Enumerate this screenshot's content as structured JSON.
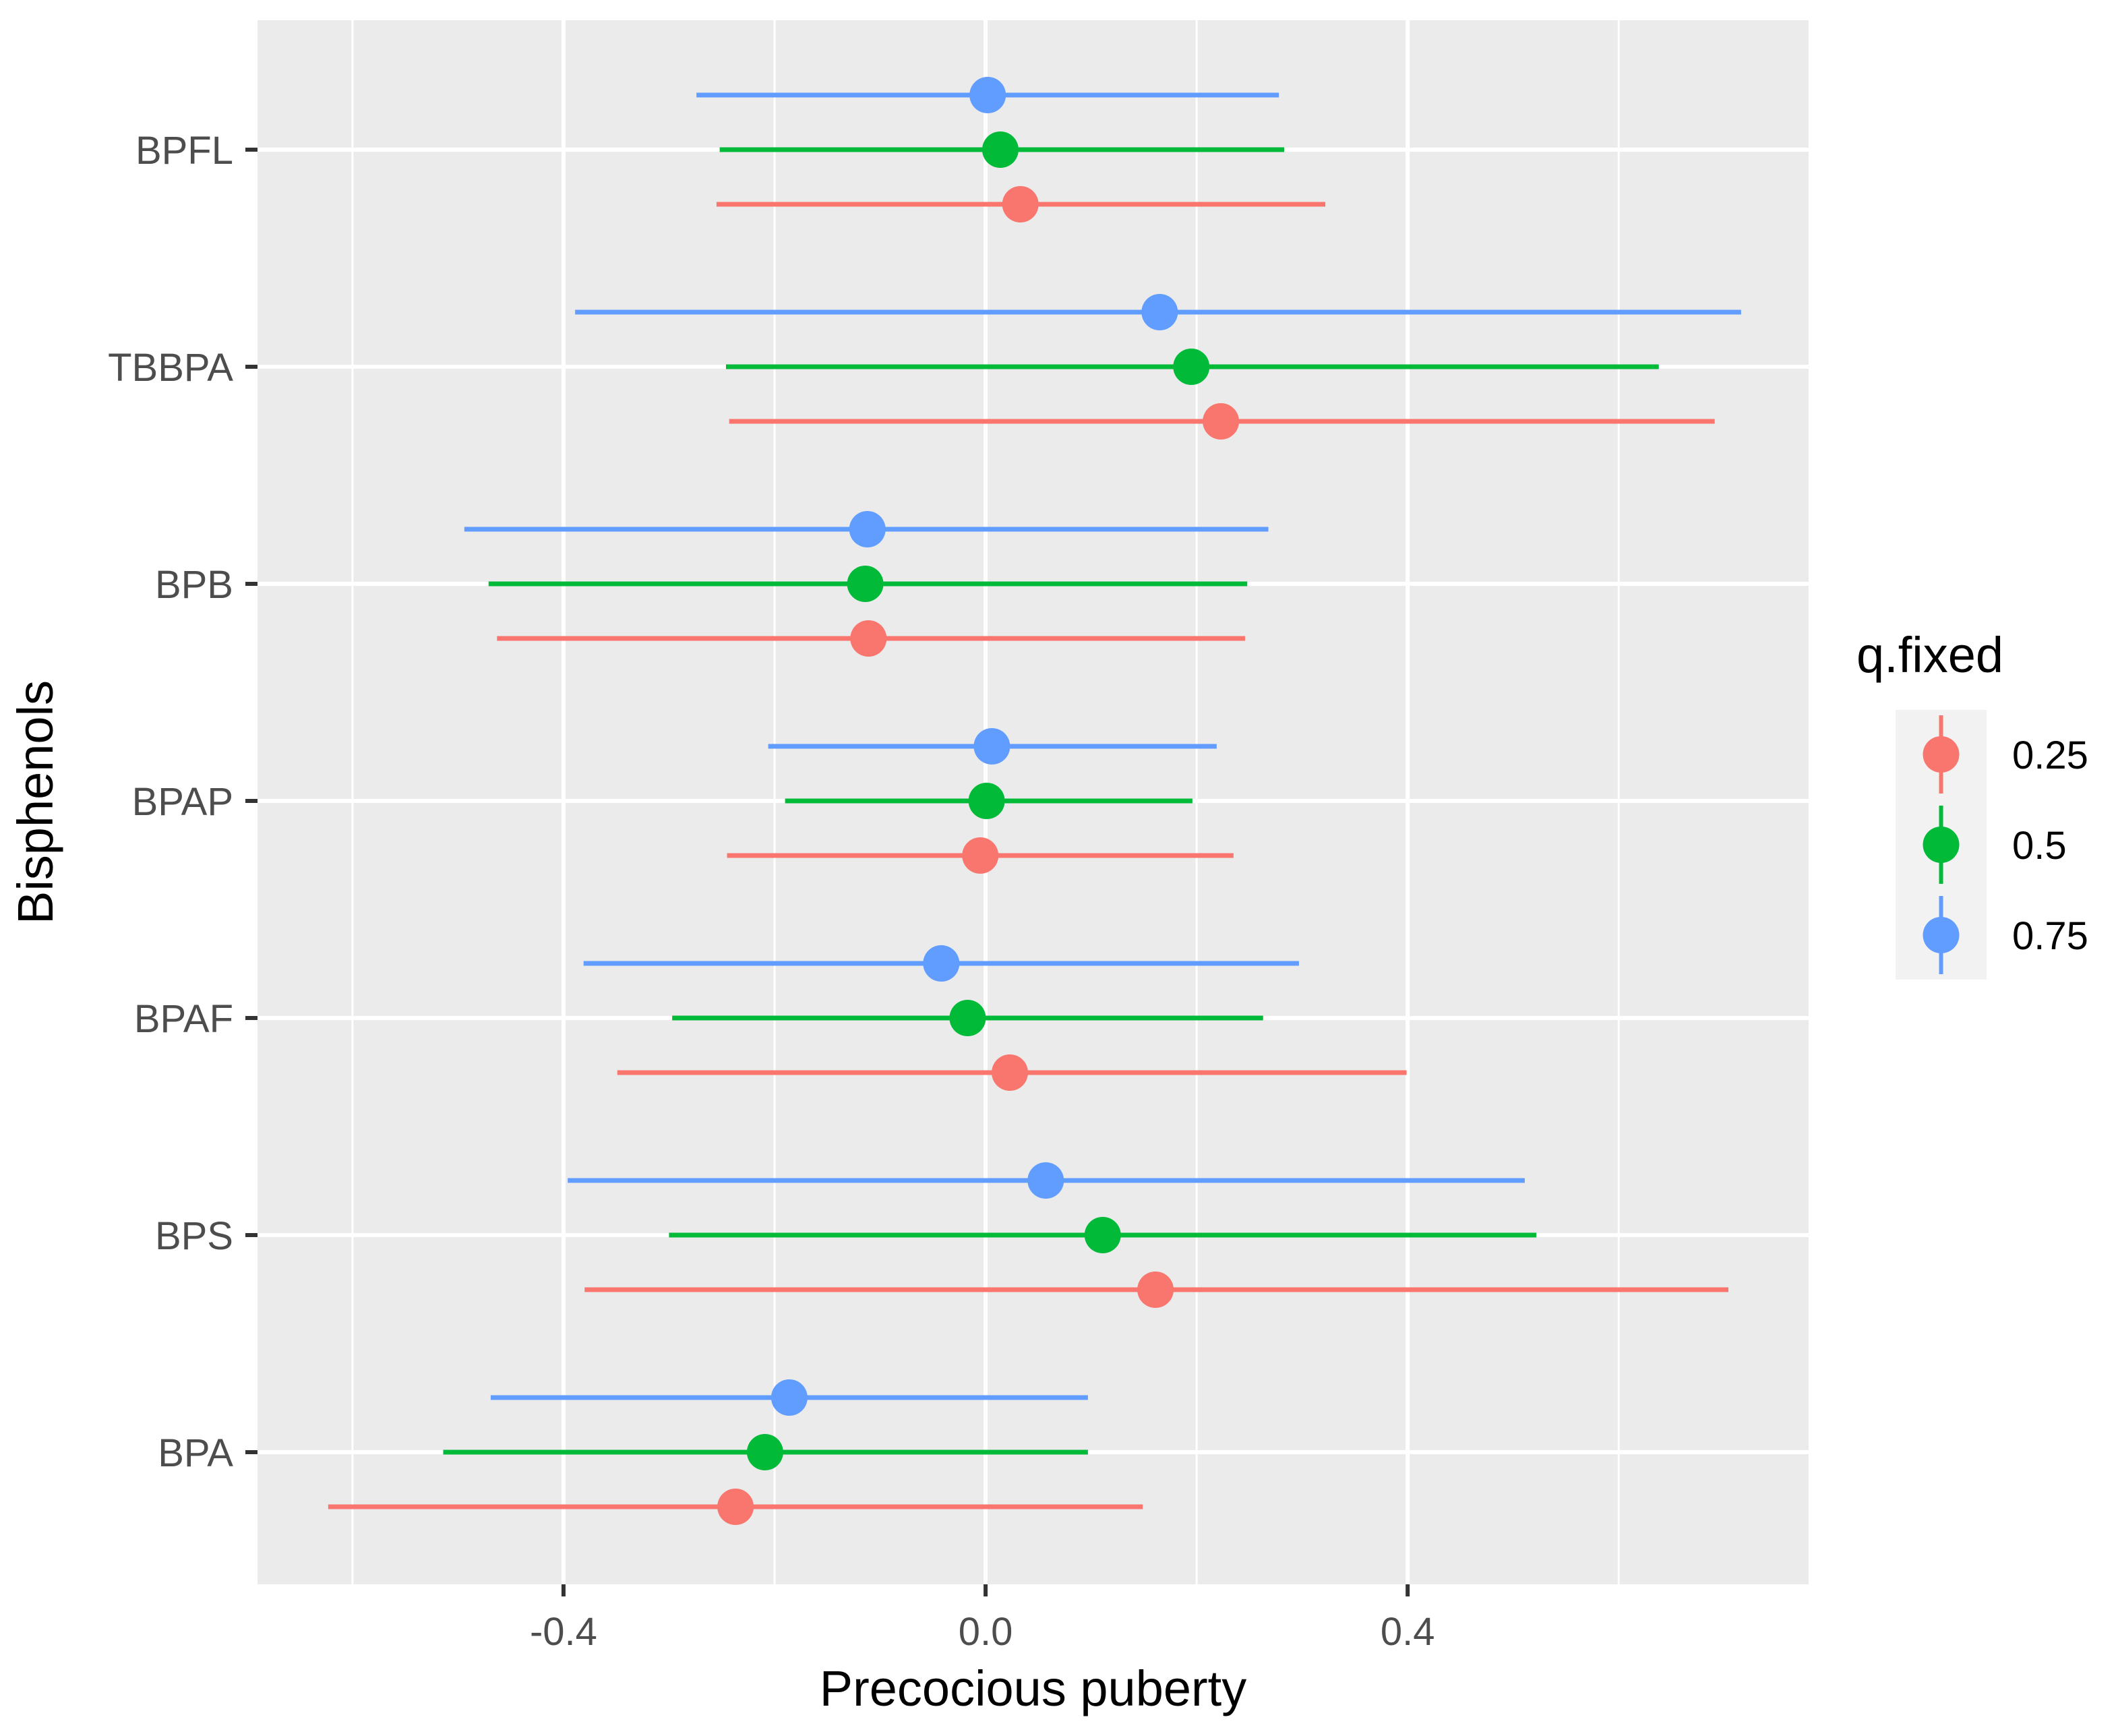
{
  "chart_data": {
    "type": "scatter",
    "subtype": "pointrange",
    "xlabel": "Precocious puberty",
    "ylabel": "Bisphenols",
    "xlim": [
      -0.69,
      0.78
    ],
    "x_ticks": [
      -0.4,
      0.0,
      0.4
    ],
    "x_tick_labels": [
      "-0.4",
      "0.0",
      "0.4"
    ],
    "x_minor_ticks": [
      -0.6,
      -0.2,
      0.2,
      0.6
    ],
    "categories": [
      "BPFL",
      "TBBPA",
      "BPB",
      "BPAP",
      "BPAF",
      "BPS",
      "BPA"
    ],
    "grid": true,
    "panel_background": "#EBEBEB",
    "legend": {
      "title": "q.fixed",
      "position": "right",
      "entries": [
        "0.25",
        "0.5",
        "0.75"
      ]
    },
    "series": [
      {
        "name": "0.25",
        "color": "#F8766D",
        "points": [
          {
            "category": "BPFL",
            "estimate": 0.033,
            "low": -0.255,
            "high": 0.322
          },
          {
            "category": "TBBPA",
            "estimate": 0.223,
            "low": -0.243,
            "high": 0.691
          },
          {
            "category": "BPB",
            "estimate": -0.111,
            "low": -0.463,
            "high": 0.246
          },
          {
            "category": "BPAP",
            "estimate": -0.005,
            "low": -0.245,
            "high": 0.235
          },
          {
            "category": "BPAF",
            "estimate": 0.023,
            "low": -0.349,
            "high": 0.399
          },
          {
            "category": "BPS",
            "estimate": 0.161,
            "low": -0.38,
            "high": 0.704
          },
          {
            "category": "BPA",
            "estimate": -0.237,
            "low": -0.623,
            "high": 0.149
          }
        ]
      },
      {
        "name": "0.5",
        "color": "#00BA38",
        "points": [
          {
            "category": "BPFL",
            "estimate": 0.014,
            "low": -0.252,
            "high": 0.283
          },
          {
            "category": "TBBPA",
            "estimate": 0.195,
            "low": -0.246,
            "high": 0.638
          },
          {
            "category": "BPB",
            "estimate": -0.114,
            "low": -0.471,
            "high": 0.248
          },
          {
            "category": "BPAP",
            "estimate": 0.001,
            "low": -0.19,
            "high": 0.196
          },
          {
            "category": "BPAF",
            "estimate": -0.017,
            "low": -0.297,
            "high": 0.263
          },
          {
            "category": "BPS",
            "estimate": 0.111,
            "low": -0.3,
            "high": 0.522
          },
          {
            "category": "BPA",
            "estimate": -0.209,
            "low": -0.514,
            "high": 0.097
          }
        ]
      },
      {
        "name": "0.75",
        "color": "#619CFF",
        "points": [
          {
            "category": "BPFL",
            "estimate": 0.002,
            "low": -0.274,
            "high": 0.278
          },
          {
            "category": "TBBPA",
            "estimate": 0.165,
            "low": -0.389,
            "high": 0.716
          },
          {
            "category": "BPB",
            "estimate": -0.112,
            "low": -0.494,
            "high": 0.268
          },
          {
            "category": "BPAP",
            "estimate": 0.006,
            "low": -0.206,
            "high": 0.219
          },
          {
            "category": "BPAF",
            "estimate": -0.042,
            "low": -0.381,
            "high": 0.297
          },
          {
            "category": "BPS",
            "estimate": 0.057,
            "low": -0.396,
            "high": 0.511
          },
          {
            "category": "BPA",
            "estimate": -0.186,
            "low": -0.469,
            "high": 0.097
          }
        ]
      }
    ]
  }
}
